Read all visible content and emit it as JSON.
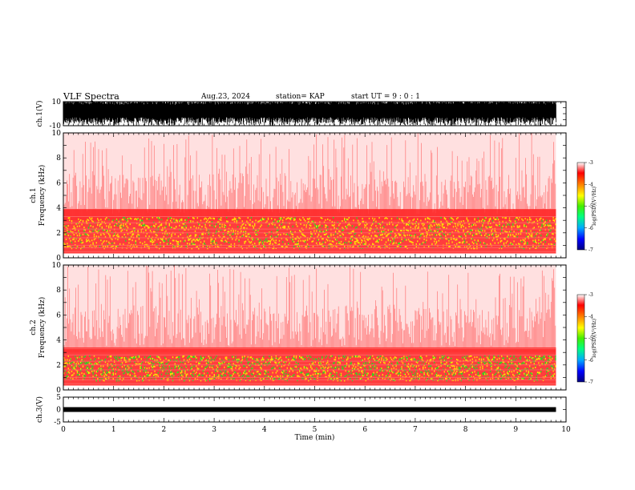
{
  "header": {
    "title": "VLF Spectra",
    "date": "Aug.23, 2024",
    "station": "station= KAP",
    "start": "start  UT =   9 : 0  : 1"
  },
  "colors": {
    "spec_bg": "#ffe0e0",
    "spec_red": "#ff2020",
    "spec_yellow": "#ffee00",
    "spec_green": "#22dd22",
    "colorbar": [
      "#000080",
      "#0000ff",
      "#00aaff",
      "#00ff80",
      "#44ee00",
      "#ffff00",
      "#ff8000",
      "#ff0000",
      "#ffffff"
    ]
  },
  "chart_data": [
    {
      "type": "line",
      "name": "waveform-ch1",
      "ylabel": "ch.1(V)",
      "ylim": [
        -10,
        10
      ],
      "y_ticks": [
        "10",
        "-10"
      ],
      "xlim": [
        0,
        10
      ],
      "description_values": {
        "amplitude_typical": [
          -8,
          10
        ]
      }
    },
    {
      "type": "heatmap",
      "name": "spectrogram-ch1",
      "ylabel": "ch.1\nFrequency (kHz)",
      "ylim": [
        0,
        10
      ],
      "y_ticks": [
        "0",
        "2",
        "4",
        "6",
        "8",
        "10"
      ],
      "xlim": [
        0,
        9.8
      ],
      "bands_khz": {
        "strong": [
          0.8,
          3.3
        ],
        "background_top": 10
      },
      "colorbar": {
        "label": "log(PSD)(V²/Hz)",
        "ticks": [
          "-3",
          "-4",
          "-5",
          "-6",
          "-7"
        ],
        "range": [
          -7,
          -3
        ]
      }
    },
    {
      "type": "heatmap",
      "name": "spectrogram-ch2",
      "ylabel": "ch.2\nFrequency (kHz)",
      "ylim": [
        0,
        10
      ],
      "y_ticks": [
        "0",
        "2",
        "4",
        "6",
        "8",
        "10"
      ],
      "xlim": [
        0,
        9.8
      ],
      "bands_khz": {
        "strong": [
          0.8,
          2.8
        ],
        "background_top": 10
      },
      "colorbar": {
        "label": "log(PSD)(V²/Hz)",
        "ticks": [
          "-3",
          "-4",
          "-5",
          "-6",
          "-7"
        ],
        "range": [
          -7,
          -3
        ]
      }
    },
    {
      "type": "line",
      "name": "waveform-ch3",
      "ylabel": "ch.3(V)",
      "ylim": [
        -5,
        5
      ],
      "y_ticks": [
        "5",
        "0",
        "-5"
      ],
      "xlim": [
        0,
        10
      ],
      "level": 0
    }
  ],
  "x_axis": {
    "label": "Time  (min)",
    "ticks": [
      "0",
      "1",
      "2",
      "3",
      "4",
      "5",
      "6",
      "7",
      "8",
      "9",
      "10"
    ]
  }
}
